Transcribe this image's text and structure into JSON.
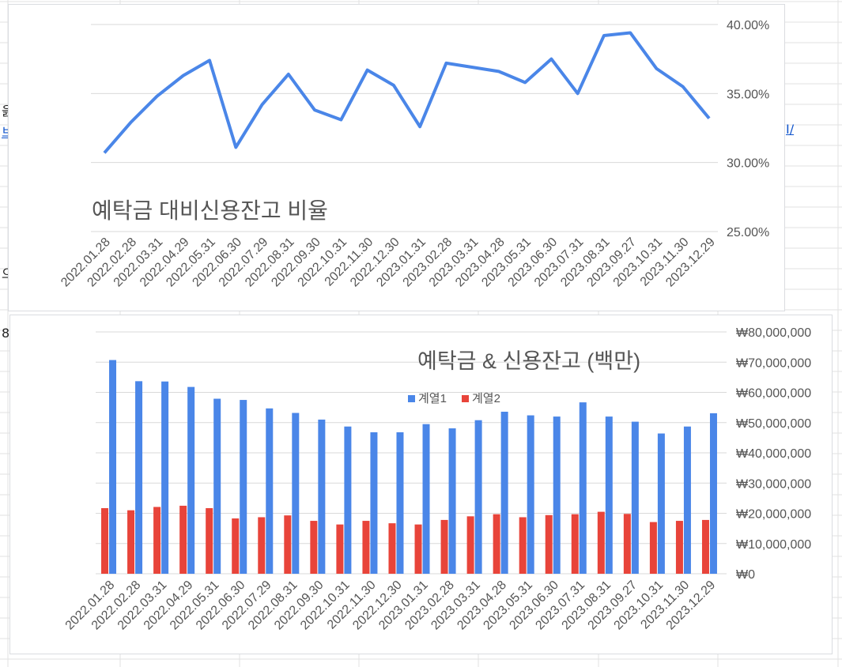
{
  "colors": {
    "deposit_blue": "#4a86e8",
    "credit_red": "#e8443a",
    "ratio_line": "#4a86e8",
    "grid": "#d9d9d9",
    "axis_text": "#555555",
    "title_text": "#555555",
    "sheet_grid": "#e2e2e2"
  },
  "background_fragments": {
    "frag1": "읊",
    "frag2": "브",
    "frag3": "Ⅰ/",
    "frag4": "으",
    "frag5": "8"
  },
  "chart_data": [
    {
      "type": "line",
      "title": "예탁금 대비신용잔고 비율",
      "categories": [
        "2022.01.28",
        "2022.02.28",
        "2022.03.31",
        "2022.04.29",
        "2022.05.31",
        "2022.06.30",
        "2022.07.29",
        "2022.08.31",
        "2022.09.30",
        "2022.10.31",
        "2022.11.30",
        "2022.12.30",
        "2023.01.31",
        "2023.02.28",
        "2023.03.31",
        "2023.04.28",
        "2023.05.31",
        "2023.06.30",
        "2023.07.31",
        "2023.08.31",
        "2023.09.27",
        "2023.10.31",
        "2023.11.30",
        "2023.12.29"
      ],
      "series": [
        {
          "values": [
            30.7,
            32.9,
            34.8,
            36.3,
            37.4,
            31.1,
            34.2,
            36.4,
            33.8,
            33.1,
            36.7,
            35.6,
            32.6,
            37.2,
            36.9,
            36.6,
            35.8,
            37.5,
            35.0,
            39.2,
            39.4,
            36.8,
            35.5,
            33.2
          ]
        }
      ],
      "y_axis_position": "right",
      "ylim": [
        25,
        40
      ],
      "yticks": [
        "40.00%",
        "35.00%",
        "30.00%",
        "25.00%"
      ],
      "ytick_values": [
        40,
        35,
        30,
        25
      ],
      "grid": true,
      "legend": "none"
    },
    {
      "type": "bar",
      "title": "예탁금 & 신용잔고 (백만)",
      "categories": [
        "2022.01.28",
        "2022.02.28",
        "2022.03.31",
        "2022.04.29",
        "2022.05.31",
        "2022.06.30",
        "2022.07.29",
        "2022.08.31",
        "2022.09.30",
        "2022.10.31",
        "2022.11.30",
        "2022.12.30",
        "2023.01.31",
        "2023.02.28",
        "2023.03.31",
        "2023.04.28",
        "2023.05.31",
        "2023.06.30",
        "2023.07.31",
        "2023.08.31",
        "2023.09.27",
        "2023.10.31",
        "2023.11.30",
        "2023.12.29"
      ],
      "series": [
        {
          "name": "계열1",
          "color": "#4a86e8",
          "values": [
            70700000,
            63700000,
            63600000,
            61800000,
            57900000,
            57500000,
            54700000,
            53200000,
            51000000,
            48700000,
            46800000,
            46800000,
            49500000,
            48100000,
            50800000,
            53600000,
            52400000,
            52000000,
            56700000,
            52000000,
            50300000,
            46400000,
            48700000,
            53100000
          ]
        },
        {
          "name": "계열2",
          "color": "#e8443a",
          "values": [
            21700000,
            21000000,
            22100000,
            22500000,
            21700000,
            18300000,
            18700000,
            19300000,
            17500000,
            16300000,
            17500000,
            16700000,
            16300000,
            17800000,
            19000000,
            19700000,
            18700000,
            19400000,
            19700000,
            20500000,
            19800000,
            17100000,
            17500000,
            17800000
          ]
        }
      ],
      "y_axis_position": "right",
      "ylim": [
        0,
        80000000
      ],
      "yticks": [
        "₩80,000,000",
        "₩70,000,000",
        "₩60,000,000",
        "₩50,000,000",
        "₩40,000,000",
        "₩30,000,000",
        "₩20,000,000",
        "₩10,000,000",
        "₩0"
      ],
      "ytick_values": [
        80000000,
        70000000,
        60000000,
        50000000,
        40000000,
        30000000,
        20000000,
        10000000,
        0
      ],
      "grid": true,
      "legend": "top-center"
    }
  ]
}
